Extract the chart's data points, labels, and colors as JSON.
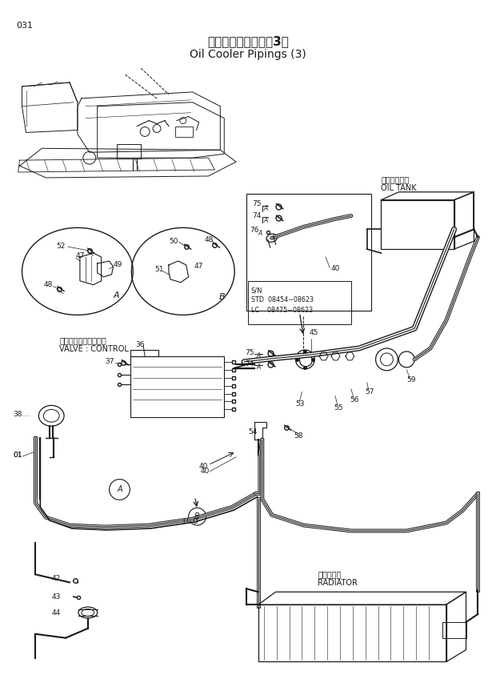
{
  "title_jp": "オイルクーラ配管（3）",
  "title_en": "Oil Cooler Pipings (3)",
  "page_num": "031",
  "bg_color": "#ffffff",
  "line_color": "#1a1a1a",
  "text_color": "#1a1a1a",
  "labels": {
    "oil_tank_jp": "オイルタンク",
    "oil_tank_en": "OIL TANK",
    "valve_control_jp": "バルブ：コントロール",
    "valve_control_en": "VALVE : CONTROL",
    "radiator_jp": "ラジエータ",
    "radiator_en": "RADIATOR",
    "sn_line1": "S/N",
    "sn_line2": "STD  08454∼08623",
    "sn_line3": "LC    08475∼08623"
  },
  "figsize": [
    6.2,
    8.73
  ],
  "dpi": 100
}
